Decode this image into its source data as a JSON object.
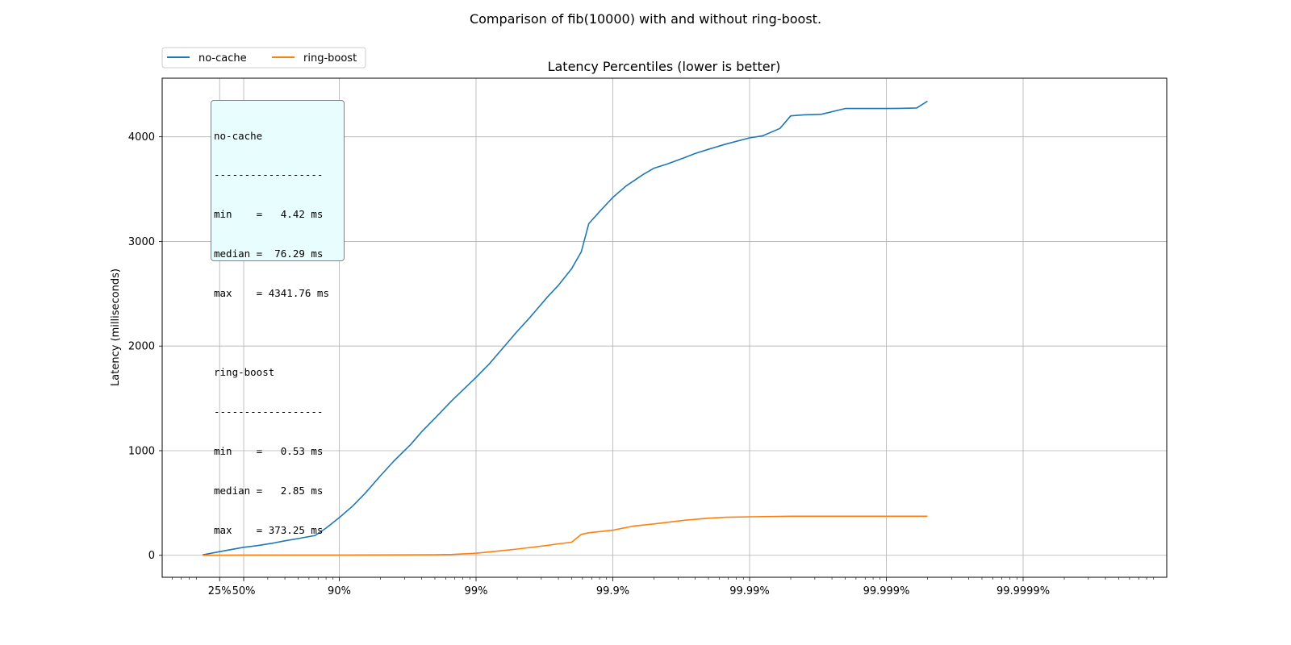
{
  "figure_title": "Comparison of fib(10000) with and without ring-boost.",
  "stats_box": {
    "lines": [
      "no-cache",
      "------------------",
      "min    =   4.42 ms",
      "median =  76.29 ms",
      "max    = 4341.76 ms",
      "",
      "ring-boost",
      "------------------",
      "min    =   0.53 ms",
      "median =   2.85 ms",
      "max    = 373.25 ms"
    ]
  },
  "chart_data": {
    "type": "line",
    "title": "Latency Percentiles (lower is better)",
    "xlabel": "",
    "ylabel": "Latency (milliseconds)",
    "x_scale": "log of 1/(1-p), p = percentile",
    "x_ticks": [
      "25%",
      "50%",
      "90%",
      "99%",
      "99.9%",
      "99.99%",
      "99.999%",
      "99.9999%"
    ],
    "x_tick_percentiles": [
      25,
      50,
      90,
      99,
      99.9,
      99.99,
      99.999,
      99.9999
    ],
    "y_ticks": [
      0,
      1000,
      2000,
      3000,
      4000
    ],
    "ylim": [
      -210,
      4560
    ],
    "grid": true,
    "legend_placement": "above plot, top-left",
    "series": [
      {
        "name": "no-cache",
        "color": "#1f77b4",
        "points": [
          [
            0,
            4.42
          ],
          [
            25,
            35
          ],
          [
            50,
            76.29
          ],
          [
            60,
            92
          ],
          [
            70,
            118
          ],
          [
            75,
            138
          ],
          [
            80,
            160
          ],
          [
            85,
            190
          ],
          [
            87.5,
            260
          ],
          [
            90,
            360
          ],
          [
            92,
            470
          ],
          [
            93.5,
            590
          ],
          [
            95,
            760
          ],
          [
            96,
            900
          ],
          [
            97,
            1060
          ],
          [
            97.5,
            1180
          ],
          [
            98,
            1310
          ],
          [
            98.5,
            1480
          ],
          [
            99,
            1700
          ],
          [
            99.2,
            1830
          ],
          [
            99.4,
            2020
          ],
          [
            99.5,
            2140
          ],
          [
            99.6,
            2280
          ],
          [
            99.7,
            2470
          ],
          [
            99.75,
            2580
          ],
          [
            99.8,
            2740
          ],
          [
            99.83,
            2900
          ],
          [
            99.85,
            3170
          ],
          [
            99.88,
            3310
          ],
          [
            99.9,
            3420
          ],
          [
            99.92,
            3530
          ],
          [
            99.94,
            3640
          ],
          [
            99.95,
            3700
          ],
          [
            99.96,
            3740
          ],
          [
            99.97,
            3800
          ],
          [
            99.975,
            3840
          ],
          [
            99.98,
            3880
          ],
          [
            99.985,
            3930
          ],
          [
            99.99,
            3990
          ],
          [
            99.992,
            4010
          ],
          [
            99.994,
            4080
          ],
          [
            99.995,
            4200
          ],
          [
            99.996,
            4210
          ],
          [
            99.997,
            4215
          ],
          [
            99.998,
            4270
          ],
          [
            99.999,
            4270
          ],
          [
            99.9992,
            4272
          ],
          [
            99.9994,
            4276
          ],
          [
            99.9995,
            4340
          ]
        ]
      },
      {
        "name": "ring-boost",
        "color": "#ff7f0e",
        "points": [
          [
            0,
            0.53
          ],
          [
            50,
            2.85
          ],
          [
            90,
            3
          ],
          [
            98,
            5
          ],
          [
            98.5,
            8
          ],
          [
            99,
            20
          ],
          [
            99.3,
            40
          ],
          [
            99.5,
            60
          ],
          [
            99.6,
            75
          ],
          [
            99.7,
            95
          ],
          [
            99.75,
            110
          ],
          [
            99.8,
            125
          ],
          [
            99.83,
            200
          ],
          [
            99.85,
            215
          ],
          [
            99.9,
            240
          ],
          [
            99.93,
            280
          ],
          [
            99.95,
            300
          ],
          [
            99.97,
            335
          ],
          [
            99.98,
            355
          ],
          [
            99.985,
            363
          ],
          [
            99.99,
            368
          ],
          [
            99.995,
            373
          ],
          [
            99.9995,
            373.25
          ]
        ]
      }
    ]
  }
}
